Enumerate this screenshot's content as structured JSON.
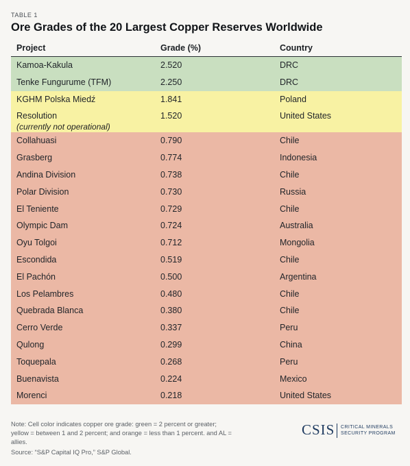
{
  "table_label": "TABLE 1",
  "title": "Ore Grades of the 20 Largest Copper Reserves Worldwide",
  "columns": [
    "Project",
    "Grade (%)",
    "Country"
  ],
  "rows": [
    {
      "project": "Kamoa-Kakula",
      "grade": "2.520",
      "country": "DRC",
      "band": "green"
    },
    {
      "project": "Tenke Fungurume (TFM)",
      "grade": "2.250",
      "country": "DRC",
      "band": "green"
    },
    {
      "project": "KGHM Polska Miedź",
      "grade": "1.841",
      "country": "Poland",
      "band": "yellow"
    },
    {
      "project": "Resolution",
      "note": "(currently not operational)",
      "grade": "1.520",
      "country": "United States",
      "band": "yellow"
    },
    {
      "project": "Collahuasi",
      "grade": "0.790",
      "country": "Chile",
      "band": "orange"
    },
    {
      "project": "Grasberg",
      "grade": "0.774",
      "country": "Indonesia",
      "band": "orange"
    },
    {
      "project": "Andina Division",
      "grade": "0.738",
      "country": "Chile",
      "band": "orange"
    },
    {
      "project": "Polar Division",
      "grade": "0.730",
      "country": "Russia",
      "band": "orange"
    },
    {
      "project": "El Teniente",
      "grade": "0.729",
      "country": "Chile",
      "band": "orange"
    },
    {
      "project": "Olympic Dam",
      "grade": "0.724",
      "country": "Australia",
      "band": "orange"
    },
    {
      "project": "Oyu Tolgoi",
      "grade": "0.712",
      "country": "Mongolia",
      "band": "orange"
    },
    {
      "project": "Escondida",
      "grade": "0.519",
      "country": "Chile",
      "band": "orange"
    },
    {
      "project": "El Pachón",
      "grade": "0.500",
      "country": "Argentina",
      "band": "orange"
    },
    {
      "project": "Los Pelambres",
      "grade": "0.480",
      "country": "Chile",
      "band": "orange"
    },
    {
      "project": "Quebrada Blanca",
      "grade": "0.380",
      "country": "Chile",
      "band": "orange"
    },
    {
      "project": "Cerro Verde",
      "grade": "0.337",
      "country": "Peru",
      "band": "orange"
    },
    {
      "project": "Qulong",
      "grade": "0.299",
      "country": "China",
      "band": "orange"
    },
    {
      "project": "Toquepala",
      "grade": "0.268",
      "country": "Peru",
      "band": "orange"
    },
    {
      "project": "Buenavista",
      "grade": "0.224",
      "country": "Mexico",
      "band": "orange"
    },
    {
      "project": "Morenci",
      "grade": "0.218",
      "country": "United States",
      "band": "orange"
    }
  ],
  "footnote": "Note: Cell color indicates copper ore grade: green = 2 percent or greater; yellow = between 1 and 2 percent; and orange = less than 1 percent. and AL = allies.",
  "source": "Source: “S&P Capital IQ Pro,” S&P Global.",
  "logo": {
    "wordmark": "CSIS",
    "line1": "CRITICAL MINERALS",
    "line2": "SECURITY PROGRAM"
  },
  "colors": {
    "green": "#c9dfc0",
    "yellow": "#f8f2a3",
    "orange": "#ebb8a5",
    "brand": "#1e3a5f"
  }
}
